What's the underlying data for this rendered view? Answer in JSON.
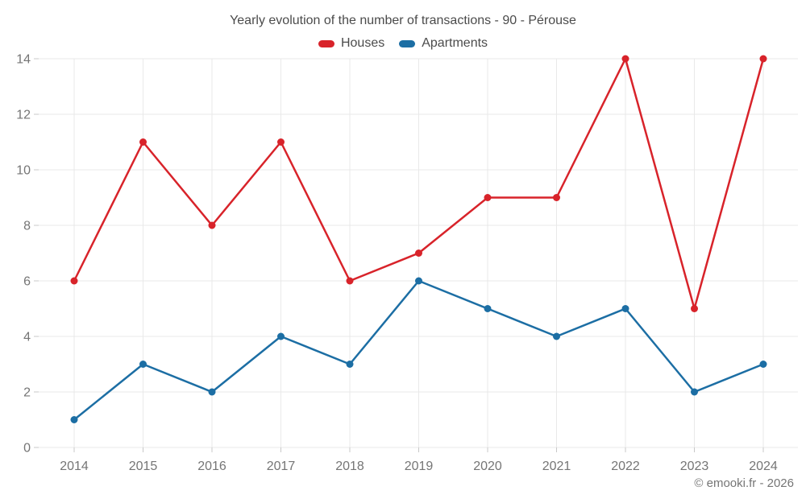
{
  "chart_data": {
    "type": "line",
    "title": "Yearly evolution of the number of transactions - 90 - Pérouse",
    "categories": [
      "2014",
      "2015",
      "2016",
      "2017",
      "2018",
      "2019",
      "2020",
      "2021",
      "2022",
      "2023",
      "2024"
    ],
    "series": [
      {
        "name": "Houses",
        "color": "#d8232a",
        "values": [
          6,
          11,
          8,
          11,
          6,
          7,
          9,
          9,
          14,
          5,
          14
        ]
      },
      {
        "name": "Apartments",
        "color": "#1c6ea4",
        "values": [
          1,
          3,
          2,
          4,
          3,
          6,
          5,
          4,
          5,
          2,
          3
        ]
      }
    ],
    "xlabel": "",
    "ylabel": "",
    "ylim": [
      0,
      14
    ],
    "yticks": [
      0,
      2,
      4,
      6,
      8,
      10,
      12,
      14
    ],
    "grid": true,
    "legend_position": "top",
    "marker": "circle"
  },
  "footer": {
    "copyright": "© emooki.fr - 2026"
  }
}
